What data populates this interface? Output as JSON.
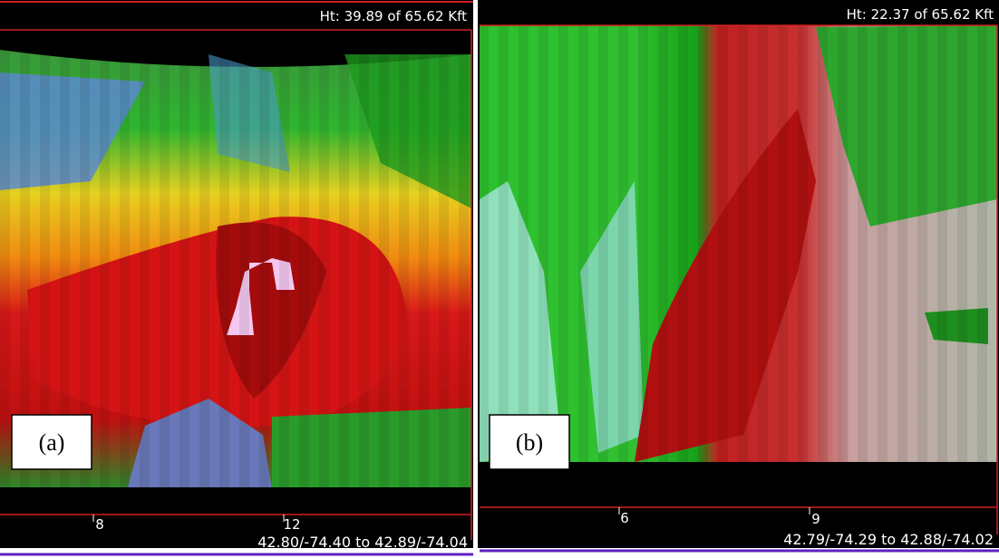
{
  "panels": [
    {
      "label": "(a)",
      "height_text": "Ht:  39.89 of  65.62 Kft",
      "ticks": [
        "8",
        "12"
      ],
      "coords": "42.80/-74.40 to 42.89/-74.04"
    },
    {
      "label": "(b)",
      "height_text": "Ht:  22.37 of  65.62 Kft",
      "ticks": [
        "6",
        "9"
      ],
      "coords": "42.79/-74.29 to 42.88/-74.02"
    }
  ]
}
